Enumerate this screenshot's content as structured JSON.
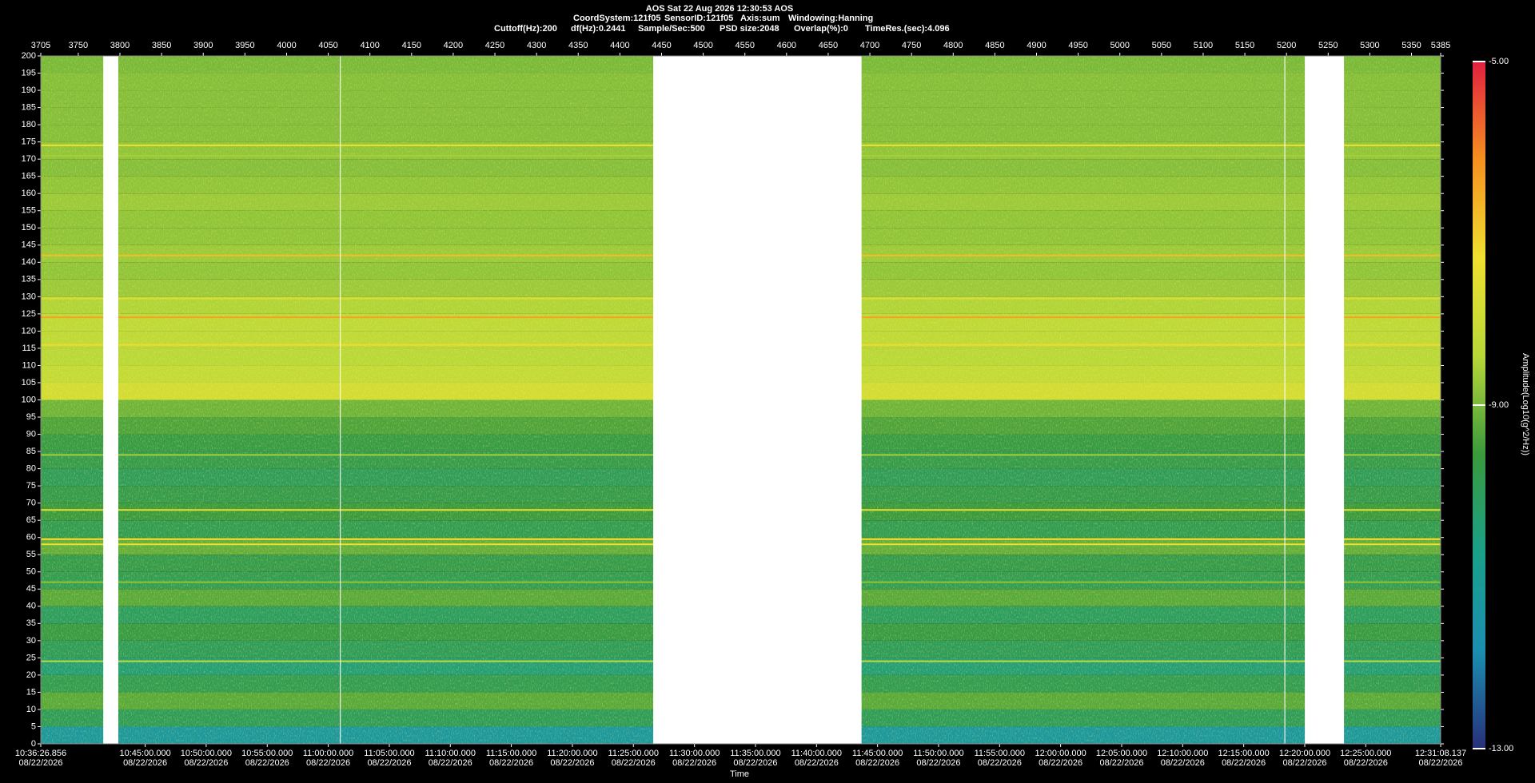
{
  "chart_data": {
    "type": "spectrogram",
    "title": "AOS  Sat 22 Aug 2026 12:30:53  AOS",
    "info_line1": [
      "CoordSystem:121f05",
      "SensorID:121f05",
      "Axis:sum",
      "Windowing:Hanning"
    ],
    "info_line2": [
      "Cuttoff(Hz):200",
      "df(Hz):0.2441",
      "Sample/Sec:500",
      "PSD size:2048",
      "Overlap(%):0",
      "TimeRes.(sec):4.096"
    ],
    "xlabel": "Time",
    "zlabel": "Amplitude(Log10(g^2/Hz))",
    "xlim": [
      3705,
      5385
    ],
    "xticks": [
      3705,
      3750,
      3800,
      3850,
      3900,
      3950,
      4000,
      4050,
      4100,
      4150,
      4200,
      4250,
      4300,
      4350,
      4400,
      4450,
      4500,
      4550,
      4600,
      4650,
      4700,
      4750,
      4800,
      4850,
      4900,
      4950,
      5000,
      5050,
      5100,
      5150,
      5200,
      5250,
      5300,
      5350,
      5385
    ],
    "time_ticks": [
      {
        "value": 3705,
        "label": "10:36:26.856",
        "date": "08/22/2026"
      },
      {
        "value": 3830.3,
        "label": "10:45:00.000",
        "date": "08/22/2026"
      },
      {
        "value": 3903.5,
        "label": "10:50:00.000",
        "date": "08/22/2026"
      },
      {
        "value": 3976.8,
        "label": "10:55:00.000",
        "date": "08/22/2026"
      },
      {
        "value": 4050.0,
        "label": "11:00:00.000",
        "date": "08/22/2026"
      },
      {
        "value": 4123.3,
        "label": "11:05:00.000",
        "date": "08/22/2026"
      },
      {
        "value": 4196.5,
        "label": "11:10:00.000",
        "date": "08/22/2026"
      },
      {
        "value": 4269.7,
        "label": "11:15:00.000",
        "date": "08/22/2026"
      },
      {
        "value": 4343.0,
        "label": "11:20:00.000",
        "date": "08/22/2026"
      },
      {
        "value": 4416.2,
        "label": "11:25:00.000",
        "date": "08/22/2026"
      },
      {
        "value": 4489.5,
        "label": "11:30:00.000",
        "date": "08/22/2026"
      },
      {
        "value": 4562.7,
        "label": "11:35:00.000",
        "date": "08/22/2026"
      },
      {
        "value": 4636.0,
        "label": "11:40:00.000",
        "date": "08/22/2026"
      },
      {
        "value": 4709.2,
        "label": "11:45:00.000",
        "date": "08/22/2026"
      },
      {
        "value": 4782.4,
        "label": "11:50:00.000",
        "date": "08/22/2026"
      },
      {
        "value": 4855.7,
        "label": "11:55:00.000",
        "date": "08/22/2026"
      },
      {
        "value": 4928.9,
        "label": "12:00:00.000",
        "date": "08/22/2026"
      },
      {
        "value": 5002.2,
        "label": "12:05:00.000",
        "date": "08/22/2026"
      },
      {
        "value": 5075.4,
        "label": "12:10:00.000",
        "date": "08/22/2026"
      },
      {
        "value": 5148.6,
        "label": "12:15:00.000",
        "date": "08/22/2026"
      },
      {
        "value": 5221.9,
        "label": "12:20:00.000",
        "date": "08/22/2026"
      },
      {
        "value": 5295.1,
        "label": "12:25:00.000",
        "date": "08/22/2026"
      },
      {
        "value": 5385,
        "label": "12:31:08.137",
        "date": "08/22/2026"
      }
    ],
    "ylim": [
      0,
      200
    ],
    "yticks": [
      0,
      5,
      10,
      15,
      20,
      25,
      30,
      35,
      40,
      45,
      50,
      55,
      60,
      65,
      70,
      75,
      80,
      85,
      90,
      95,
      100,
      105,
      110,
      115,
      120,
      125,
      130,
      135,
      140,
      145,
      150,
      155,
      160,
      165,
      170,
      175,
      180,
      185,
      190,
      195,
      200
    ],
    "zlim": [
      -13,
      -5
    ],
    "zticks": [
      {
        "value": -5,
        "label": "-5.00"
      },
      {
        "value": -9,
        "label": "-9.00"
      },
      {
        "value": -13,
        "label": "-13.00"
      }
    ],
    "colormap": [
      "#27307a",
      "#1b8fb0",
      "#1aa08a",
      "#3a9a3c",
      "#b8d838",
      "#f0e030",
      "#f59020",
      "#e02040"
    ],
    "freq_bins": [
      0,
      5,
      10,
      15,
      20,
      25,
      30,
      35,
      40,
      45,
      50,
      55,
      60,
      65,
      70,
      75,
      80,
      85,
      90,
      95,
      100,
      105,
      110,
      115,
      120,
      125,
      130,
      135,
      140,
      145,
      150,
      155,
      160,
      165,
      170,
      175,
      180,
      185,
      190,
      195,
      200
    ],
    "values": [
      -11.3,
      -10.0,
      -9.3,
      -9.9,
      -10.4,
      -10.0,
      -9.7,
      -10.1,
      -9.3,
      -9.9,
      -9.8,
      -9.2,
      -9.9,
      -9.6,
      -9.8,
      -10.0,
      -9.8,
      -9.7,
      -9.4,
      -9.1,
      -7.9,
      -8.2,
      -8.4,
      -8.3,
      -8.3,
      -8.5,
      -8.7,
      -8.8,
      -8.7,
      -8.8,
      -8.8,
      -8.7,
      -8.8,
      -8.9,
      -8.8,
      -8.9,
      -8.9,
      -8.9,
      -8.9,
      -9.0
    ],
    "tones": {
      "freqs": [
        24,
        47,
        58,
        59.5,
        68,
        84,
        116,
        124,
        129.5,
        142,
        171,
        174
      ],
      "values": [
        -8.2,
        -8.8,
        -7.4,
        -7.2,
        -7.4,
        -8.6,
        -7.2,
        -6.4,
        -7.6,
        -6.8,
        -8.6,
        -7.3
      ]
    },
    "gaps": [
      [
        3780,
        3798
      ],
      [
        4064,
        4065
      ],
      [
        4440,
        4690
      ],
      [
        5197.5,
        5198.5
      ],
      [
        5222,
        5269
      ]
    ]
  }
}
